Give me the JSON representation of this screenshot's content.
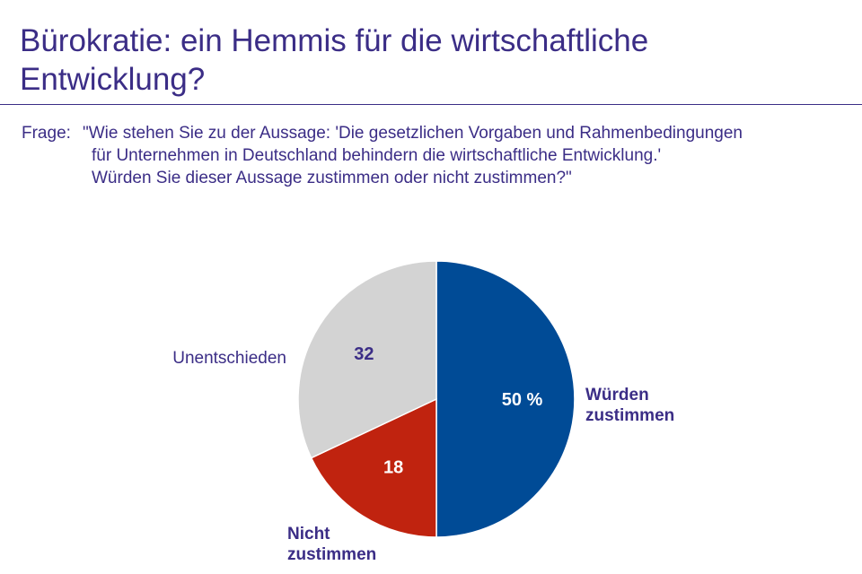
{
  "header": {
    "title": "Bürokratie: ein Hemmis für die wirtschaftliche Entwicklung?"
  },
  "question": {
    "label": "Frage:",
    "lines": [
      "\"Wie stehen Sie zu der Aussage: 'Die gesetzlichen Vorgaben und Rahmenbedingungen",
      "für Unternehmen in Deutschland behindern die wirtschaftliche Entwicklung.'",
      "Würden Sie dieser Aussage zustimmen oder nicht zustimmen?\""
    ]
  },
  "chart_data": {
    "type": "pie",
    "unit": "%",
    "slices": [
      {
        "category": "Würden zustimmen",
        "category_lines": [
          "Würden",
          "zustimmen"
        ],
        "value": 50,
        "value_label": "50 %",
        "color": "#004b96",
        "value_color": "#ffffff",
        "category_color": "#3b2d86",
        "category_bold": true
      },
      {
        "category": "Nicht zustimmen",
        "category_lines": [
          "Nicht",
          "zustimmen"
        ],
        "value": 18,
        "value_label": "18",
        "color": "#c0230f",
        "value_color": "#ffffff",
        "category_color": "#3b2d86",
        "category_bold": true
      },
      {
        "category": "Unentschieden",
        "category_lines": [
          "Unentschieden"
        ],
        "value": 32,
        "value_label": "32",
        "color": "#d3d3d3",
        "value_color": "#3b2d86",
        "category_color": "#3b2d86",
        "category_bold": false
      }
    ]
  }
}
